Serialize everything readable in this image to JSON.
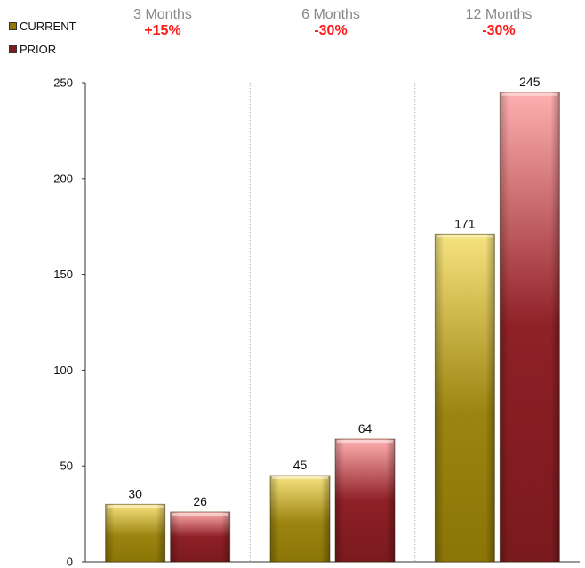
{
  "colors": {
    "current": "#8f7a07",
    "prior": "#7d1c20",
    "change_negative": "#ff1a1a",
    "change_positive": "#ff1a1a"
  },
  "legend": {
    "current_label": "CURRENT",
    "prior_label": "PRIOR"
  },
  "headers": [
    {
      "title": "3 Months",
      "change": "+15%"
    },
    {
      "title": "6 Months",
      "change": "-30%"
    },
    {
      "title": "12 Months",
      "change": "-30%"
    }
  ],
  "chart_data": {
    "type": "bar",
    "categories": [
      "3 Months",
      "6 Months",
      "12 Months"
    ],
    "series": [
      {
        "name": "CURRENT",
        "values": [
          30,
          45,
          171
        ]
      },
      {
        "name": "PRIOR",
        "values": [
          26,
          64,
          245
        ]
      }
    ],
    "ylim": [
      0,
      250
    ],
    "yticks": [
      0,
      50,
      100,
      150,
      200,
      250
    ],
    "data_labels": true,
    "legend": "top-left",
    "grid": "vertical-dotted-separators"
  }
}
